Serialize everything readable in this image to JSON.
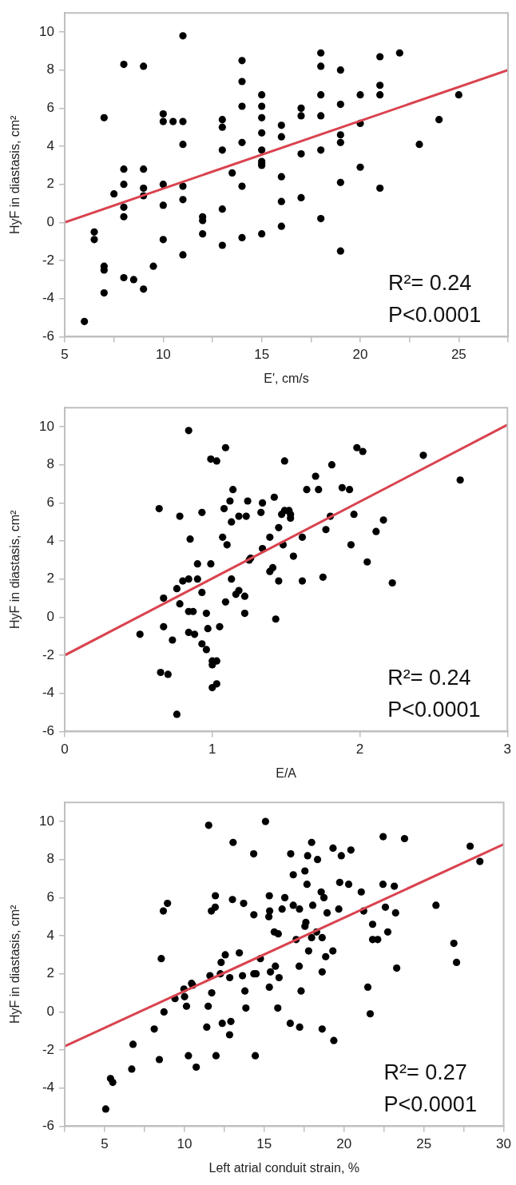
{
  "chart_data": [
    {
      "type": "scatter",
      "xlabel": "E', cm/s",
      "ylabel": "HyF in diastasis, cm²",
      "xlim": [
        5,
        27.5
      ],
      "ylim": [
        -6,
        11
      ],
      "xticks": [
        5,
        {
          "value": 7.5,
          "label": null
        },
        10,
        {
          "value": 12.5,
          "label": null
        },
        15,
        {
          "value": 17.5,
          "label": null
        },
        20,
        {
          "value": 22.5,
          "label": null
        },
        25,
        {
          "value": 27.5,
          "label": null
        }
      ],
      "yticks": [
        -6,
        -4,
        -2,
        0,
        2,
        4,
        6,
        8,
        10
      ],
      "annotations": [
        "R²= 0.24",
        "P<0.0001"
      ],
      "series": [
        {
          "marker": "circle",
          "color": "#000000",
          "x": [
            6,
            6.5,
            6.5,
            7,
            7,
            7,
            7,
            7.5,
            8,
            8,
            8,
            8,
            8,
            8,
            8.5,
            9,
            9,
            9,
            9,
            9,
            9.5,
            10,
            10,
            10,
            10,
            10,
            10.5,
            11,
            11,
            11,
            11,
            11,
            11,
            12,
            12,
            12,
            13,
            13,
            13,
            13,
            13,
            13.5,
            14,
            14,
            14,
            14,
            14,
            14,
            15,
            15,
            15,
            15,
            15,
            15,
            15,
            15,
            15,
            16,
            16,
            16,
            16,
            16,
            17,
            17,
            17,
            17,
            18,
            18,
            18,
            18,
            18,
            18,
            19,
            19,
            19,
            19,
            19,
            19,
            20,
            20,
            20,
            21,
            21,
            21,
            21,
            22,
            23,
            24,
            25
          ],
          "values": [
            -5.2,
            -0.5,
            -0.9,
            5.5,
            -2.3,
            -2.5,
            -3.7,
            1.5,
            8.3,
            2.8,
            2.0,
            0.8,
            0.3,
            -2.9,
            -3.0,
            8.2,
            2.8,
            1.8,
            1.4,
            -3.5,
            -2.3,
            5.7,
            5.3,
            2.0,
            0.9,
            -0.9,
            5.3,
            9.8,
            5.3,
            4.1,
            1.9,
            1.2,
            -1.7,
            0.3,
            0.1,
            -0.6,
            5.4,
            5.0,
            3.8,
            0.7,
            -1.2,
            2.6,
            8.5,
            7.4,
            6.1,
            4.2,
            1.9,
            -0.8,
            6.7,
            6.1,
            5.5,
            4.7,
            3.8,
            3.2,
            3.1,
            3.0,
            -0.6,
            5.1,
            4.5,
            2.4,
            1.1,
            -0.2,
            6.0,
            5.6,
            3.6,
            1.3,
            8.9,
            8.2,
            6.7,
            5.6,
            3.8,
            0.2,
            8.0,
            6.2,
            4.6,
            4.2,
            2.1,
            -1.5,
            6.7,
            5.2,
            2.9,
            8.7,
            7.2,
            6.7,
            1.8,
            8.9,
            4.1,
            5.4,
            6.7
          ]
        },
        {
          "type": "line",
          "marker": "none",
          "color": "#d9434f",
          "x": [
            5,
            27.5
          ],
          "values": [
            0,
            8
          ]
        }
      ]
    },
    {
      "type": "scatter",
      "xlabel": "E/A",
      "ylabel": "HyF in diastasis, cm²",
      "xlim": [
        0,
        3
      ],
      "ylim": [
        -6,
        11
      ],
      "xticks": [
        0,
        1,
        2,
        3
      ],
      "yticks": [
        -6,
        -4,
        -2,
        0,
        2,
        4,
        6,
        8,
        10
      ],
      "annotations": [
        "R²= 0.24",
        "P<0.0001"
      ],
      "series": [
        {
          "marker": "circle",
          "color": "#000000",
          "x": [
            0.51,
            0.64,
            0.65,
            0.67,
            0.67,
            0.7,
            0.73,
            0.76,
            0.76,
            0.78,
            0.78,
            0.8,
            0.84,
            0.84,
            0.84,
            0.84,
            0.85,
            0.87,
            0.88,
            0.9,
            0.9,
            0.93,
            0.93,
            0.93,
            0.96,
            0.96,
            0.97,
            0.99,
            0.99,
            1,
            1,
            1,
            1.03,
            1.03,
            1.03,
            1.05,
            1.07,
            1.08,
            1.09,
            1.09,
            1.1,
            1.12,
            1.13,
            1.14,
            1.13,
            1.16,
            1.18,
            1.18,
            1.22,
            1.22,
            1.23,
            1.24,
            1.25,
            1.26,
            1.33,
            1.34,
            1.34,
            1.39,
            1.39,
            1.41,
            1.42,
            1.43,
            1.45,
            1.45,
            1.47,
            1.48,
            1.49,
            1.49,
            1.52,
            1.53,
            1.53,
            1.55,
            1.61,
            1.61,
            1.64,
            1.7,
            1.72,
            1.75,
            1.77,
            1.8,
            1.81,
            1.88,
            1.93,
            1.94,
            1.96,
            1.98,
            2.02,
            2.05,
            2.11,
            2.16,
            2.22,
            2.43,
            2.68
          ],
          "values": [
            -0.9,
            5.7,
            -2.9,
            1.0,
            -0.5,
            -3.0,
            -1.2,
            1.5,
            -5.1,
            5.3,
            0.7,
            1.9,
            9.8,
            2.0,
            0.3,
            -0.8,
            4.1,
            0.3,
            -0.9,
            2.8,
            2.0,
            5.5,
            1.3,
            -1.4,
            0.2,
            -1.7,
            -0.6,
            8.3,
            2.8,
            -2.3,
            -2.5,
            -3.7,
            -2.3,
            -3.5,
            8.2,
            -0.5,
            4.2,
            5.7,
            8.9,
            0.8,
            3.8,
            6.1,
            5.0,
            6.7,
            2.0,
            1.2,
            5.3,
            1.4,
            1.1,
            0.2,
            5.3,
            6.1,
            3.0,
            3.1,
            5.5,
            6.0,
            3.6,
            4.2,
            2.4,
            2.6,
            6.3,
            -0.1,
            4.7,
            1.9,
            5.4,
            3.8,
            8.2,
            5.6,
            5.6,
            5.4,
            5.2,
            3.2,
            4.2,
            1.9,
            6.7,
            7.4,
            6.7,
            2.1,
            4.6,
            5.3,
            8.0,
            6.8,
            6.7,
            3.8,
            5.4,
            8.9,
            8.7,
            2.9,
            4.5,
            5.1,
            1.8,
            8.5,
            7.2
          ]
        },
        {
          "type": "line",
          "marker": "none",
          "color": "#d9434f",
          "x": [
            0,
            3
          ],
          "values": [
            -2,
            10.1
          ]
        }
      ]
    },
    {
      "type": "scatter",
      "xlabel": "Left atrial conduit strain, %",
      "ylabel": "HyF in diastasis, cm²",
      "xlim": [
        2.5,
        30
      ],
      "ylim": [
        -6,
        11
      ],
      "xticks": [
        {
          "value": 2.5,
          "label": null
        },
        5,
        {
          "value": 7.5,
          "label": null
        },
        10,
        {
          "value": 12.5,
          "label": null
        },
        15,
        {
          "value": 17.5,
          "label": null
        },
        20,
        {
          "value": 22.5,
          "label": null
        },
        25,
        {
          "value": 27.5,
          "label": null
        },
        30
      ],
      "yticks": [
        -6,
        -4,
        -2,
        0,
        2,
        4,
        6,
        8,
        10
      ],
      "annotations": [
        "R²= 0.27",
        "P<0.0001"
      ],
      "series": [
        {
          "marker": "circle",
          "color": "#000000",
          "x": [
            5.07,
            5.37,
            5.51,
            6.7,
            6.78,
            8.11,
            8.43,
            8.55,
            8.68,
            8.72,
            8.94,
            9.41,
            9.97,
            10.01,
            10.13,
            10.25,
            10.45,
            10.52,
            10.74,
            11.4,
            11.49,
            11.52,
            11.6,
            11.69,
            11.71,
            11.93,
            11.94,
            11.98,
            12.25,
            12.3,
            12.37,
            12.56,
            12.83,
            12.84,
            12.91,
            13.01,
            13.05,
            13.44,
            13.64,
            13.71,
            13.79,
            13.85,
            14.34,
            14.35,
            14.35,
            14.44,
            14.49,
            14.76,
            15.08,
            15.32,
            15.34,
            15.29,
            15.32,
            15.39,
            15.63,
            15.88,
            15.7,
            15.93,
            15.85,
            16.12,
            16.29,
            16.63,
            16.66,
            16.82,
            16.82,
            17,
            17.19,
            17.21,
            17.22,
            17.31,
            17.55,
            17.61,
            17.55,
            17.68,
            17.72,
            17.78,
            17.97,
            17.97,
            18.04,
            18.28,
            18.34,
            18.57,
            18.74,
            18.63,
            18.63,
            18.63,
            18.85,
            18.94,
            19.3,
            19.31,
            19.36,
            19.67,
            19.73,
            19.83,
            20.29,
            20.43,
            21.08,
            21.23,
            21.49,
            21.64,
            21.79,
            21.79,
            22.11,
            22.45,
            22.44,
            22.59,
            22.74,
            23.15,
            23.23,
            23.3,
            23.79,
            25.76,
            26.88,
            27.05,
            27.9,
            28.51
          ],
          "values": [
            -5.1,
            -3.5,
            -3.7,
            -3.0,
            -1.7,
            -0.9,
            -2.5,
            2.8,
            5.3,
            0.0,
            5.7,
            0.7,
            1.2,
            0.8,
            0.3,
            -2.3,
            1.5,
            1.4,
            -2.9,
            -0.8,
            0.3,
            9.8,
            1.9,
            5.3,
            1.0,
            5.5,
            6.1,
            -2.3,
            2.0,
            2.6,
            -0.6,
            3.0,
            -1.2,
            1.8,
            -0.5,
            5.9,
            8.9,
            3.1,
            1.9,
            5.7,
            1.1,
            0.2,
            8.3,
            5.1,
            2.0,
            -2.3,
            2.0,
            2.8,
            10.0,
            6.1,
            5.3,
            5.0,
            1.3,
            2.1,
            4.2,
            4.1,
            2.4,
            1.8,
            0.2,
            5.4,
            6.0,
            -0.6,
            8.3,
            7.2,
            5.6,
            3.8,
            2.4,
            5.4,
            -0.8,
            1.1,
            4.5,
            4.7,
            7.4,
            6.7,
            8.2,
            3.2,
            3.9,
            8.9,
            5.6,
            4.2,
            8.0,
            6.3,
            6.0,
            3.9,
            2.1,
            -0.9,
            2.9,
            5.2,
            3.2,
            8.6,
            -1.5,
            5.4,
            6.8,
            8.2,
            6.7,
            8.5,
            6.3,
            5.3,
            1.3,
            -0.1,
            4.6,
            3.8,
            3.8,
            9.2,
            6.7,
            5.5,
            4.2,
            6.6,
            5.2,
            2.3,
            9.1,
            5.6,
            3.6,
            2.6,
            8.7,
            7.9
          ]
        },
        {
          "type": "line",
          "marker": "none",
          "color": "#d9434f",
          "x": [
            2.5,
            30
          ],
          "values": [
            -1.8,
            8.8
          ]
        }
      ]
    }
  ]
}
